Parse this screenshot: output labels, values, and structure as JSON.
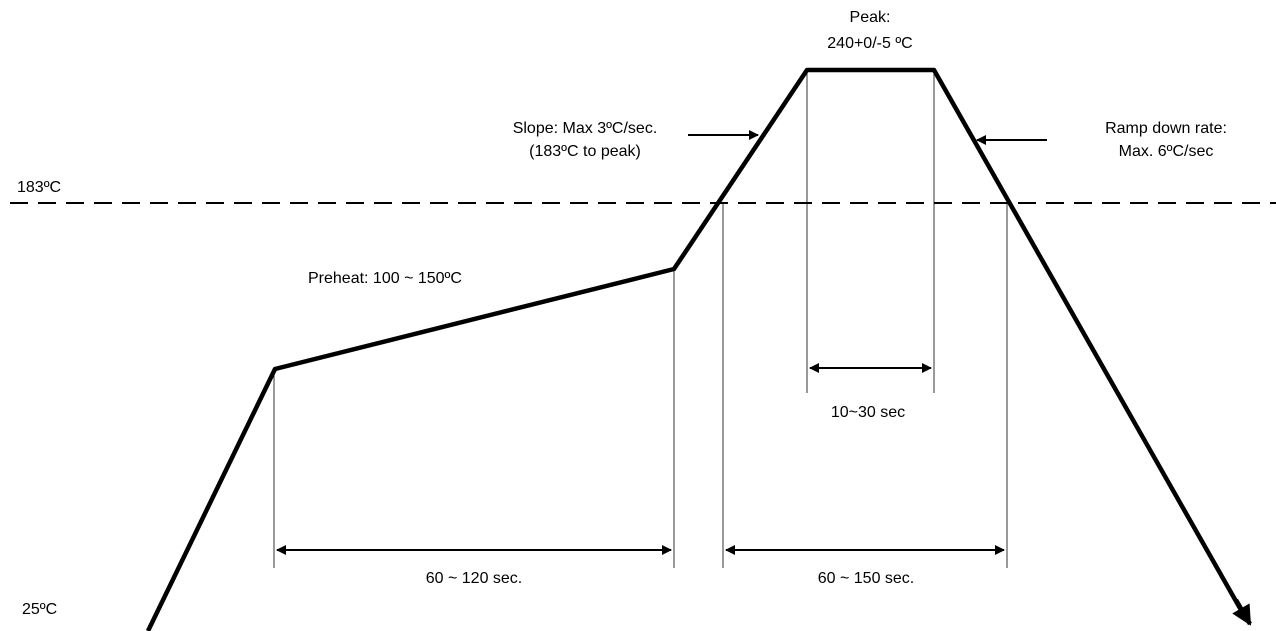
{
  "labels": {
    "peak_title": "Peak:",
    "peak_value": "240+0/-5 ºC",
    "slope_line1": "Slope: Max 3ºC/sec.",
    "slope_line2": "(183ºC to peak)",
    "ramp_line1": "Ramp down rate:",
    "ramp_line2": "Max. 6ºC/sec",
    "temp_183": "183ºC",
    "temp_25": "25ºC",
    "preheat": "Preheat: 100 ~ 150ºC",
    "dur_peak": "10~30 sec",
    "dur_preheat": "60 ~ 120 sec.",
    "dur_above": "60 ~ 150 sec."
  },
  "colors": {
    "line": "#000000",
    "background": "#ffffff"
  }
}
